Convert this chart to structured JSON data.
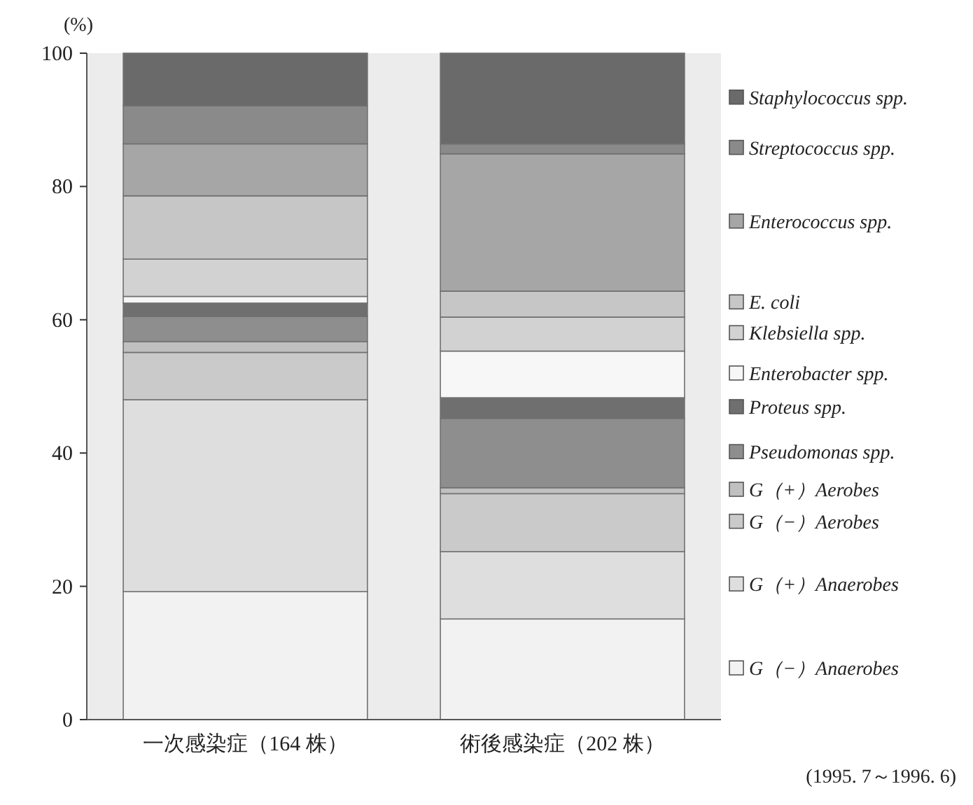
{
  "chart_data": {
    "type": "bar",
    "stacked": true,
    "ylabel": "(%)",
    "categories": [
      "一次感染症（164 株）",
      "術後感染症（202 株）"
    ],
    "ylim": [
      0,
      100
    ],
    "yticks": [
      0,
      20,
      40,
      60,
      80,
      100
    ],
    "grid": false,
    "legend": "right",
    "annotations": [
      "(1995. 7～1996. 6)"
    ],
    "series": [
      {
        "name": "G（−）Anaerobes",
        "color": "#f2f2f2",
        "values": [
          19.2,
          15.1
        ]
      },
      {
        "name": "G（+）Anaerobes",
        "color": "#dedede",
        "values": [
          28.8,
          10.1
        ]
      },
      {
        "name": "G（−）Aerobes",
        "color": "#cacaca",
        "values": [
          7.1,
          8.7
        ]
      },
      {
        "name": "G（+）Aerobes",
        "color": "#c0c0c0",
        "values": [
          1.6,
          0.9
        ]
      },
      {
        "name": "Pseudomonas spp.",
        "color": "#8e8e8e",
        "values": [
          3.8,
          10.4
        ]
      },
      {
        "name": "Proteus spp.",
        "color": "#6f6f6f",
        "values": [
          2.0,
          3.1
        ]
      },
      {
        "name": "Enterobacter spp.",
        "color": "#f7f7f7",
        "values": [
          1.0,
          7.0
        ]
      },
      {
        "name": "Klebsiella spp.",
        "color": "#d2d2d2",
        "values": [
          5.6,
          5.1
        ]
      },
      {
        "name": "E. coli",
        "color": "#c6c6c6",
        "values": [
          9.5,
          3.9
        ]
      },
      {
        "name": "Enterococcus spp.",
        "color": "#a6a6a6",
        "values": [
          7.8,
          20.6
        ]
      },
      {
        "name": "Streptococcus spp.",
        "color": "#8a8a8a",
        "values": [
          5.7,
          1.5
        ]
      },
      {
        "name": "Staphylococcus spp.",
        "color": "#6a6a6a",
        "values": [
          7.9,
          13.6
        ]
      }
    ]
  }
}
